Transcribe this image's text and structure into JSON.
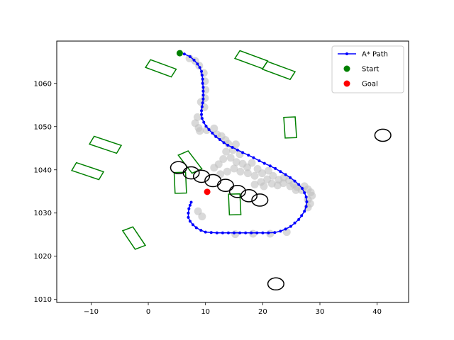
{
  "chart_data": {
    "type": "scatter",
    "xlim": [
      -16,
      45.5
    ],
    "ylim": [
      1009.3,
      1069.8
    ],
    "xticks": [
      -10,
      0,
      10,
      20,
      30,
      40
    ],
    "yticks": [
      1010,
      1020,
      1030,
      1040,
      1050,
      1060
    ],
    "grid": false,
    "legend": {
      "placement": "top-right",
      "entries": [
        {
          "label": "A* Path",
          "color": "#0000ff",
          "marker": "line-dot"
        },
        {
          "label": "Start",
          "color": "#008000",
          "marker": "dot"
        },
        {
          "label": "Goal",
          "color": "#ff0000",
          "marker": "dot"
        }
      ]
    },
    "start": {
      "x": 5.5,
      "y": 1067.0,
      "color": "#008000"
    },
    "goal": {
      "x": 10.3,
      "y": 1034.9,
      "color": "#ff0000"
    },
    "path_color": "#0000ff",
    "path": [
      [
        6.3,
        1066.8
      ],
      [
        7.3,
        1066.2
      ],
      [
        8.0,
        1065.4
      ],
      [
        8.6,
        1064.5
      ],
      [
        9.0,
        1063.7
      ],
      [
        9.3,
        1062.8
      ],
      [
        9.4,
        1061.9
      ],
      [
        9.5,
        1061.0
      ],
      [
        9.5,
        1060.0
      ],
      [
        9.6,
        1059.1
      ],
      [
        9.6,
        1058.2
      ],
      [
        9.6,
        1057.3
      ],
      [
        9.6,
        1056.4
      ],
      [
        9.5,
        1055.5
      ],
      [
        9.4,
        1054.6
      ],
      [
        9.3,
        1053.7
      ],
      [
        9.3,
        1052.8
      ],
      [
        9.4,
        1051.9
      ],
      [
        9.7,
        1051.0
      ],
      [
        10.1,
        1050.1
      ],
      [
        10.6,
        1049.3
      ],
      [
        11.2,
        1048.5
      ],
      [
        11.8,
        1047.7
      ],
      [
        12.5,
        1047.0
      ],
      [
        13.2,
        1046.3
      ],
      [
        13.9,
        1045.7
      ],
      [
        14.7,
        1045.2
      ],
      [
        15.6,
        1044.6
      ],
      [
        16.5,
        1044.0
      ],
      [
        17.5,
        1043.4
      ],
      [
        18.4,
        1042.8
      ],
      [
        19.4,
        1042.1
      ],
      [
        20.3,
        1041.5
      ],
      [
        21.3,
        1040.9
      ],
      [
        22.2,
        1040.3
      ],
      [
        23.1,
        1039.6
      ],
      [
        24.0,
        1038.9
      ],
      [
        24.8,
        1038.2
      ],
      [
        25.6,
        1037.4
      ],
      [
        26.3,
        1036.6
      ],
      [
        26.9,
        1035.7
      ],
      [
        27.3,
        1034.7
      ],
      [
        27.6,
        1033.7
      ],
      [
        27.7,
        1032.6
      ],
      [
        27.6,
        1031.5
      ],
      [
        27.3,
        1030.4
      ],
      [
        26.8,
        1029.4
      ],
      [
        26.3,
        1028.5
      ],
      [
        25.6,
        1027.7
      ],
      [
        24.9,
        1026.9
      ],
      [
        24.0,
        1026.3
      ],
      [
        23.1,
        1025.8
      ],
      [
        22.1,
        1025.5
      ],
      [
        21.0,
        1025.4
      ],
      [
        20.0,
        1025.4
      ],
      [
        19.0,
        1025.4
      ],
      [
        18.0,
        1025.4
      ],
      [
        17.0,
        1025.4
      ],
      [
        16.0,
        1025.4
      ],
      [
        15.0,
        1025.4
      ],
      [
        14.0,
        1025.4
      ],
      [
        13.0,
        1025.4
      ],
      [
        12.0,
        1025.4
      ],
      [
        11.0,
        1025.5
      ],
      [
        10.0,
        1025.6
      ],
      [
        9.2,
        1026.0
      ],
      [
        8.4,
        1026.6
      ],
      [
        7.8,
        1027.3
      ],
      [
        7.3,
        1028.1
      ],
      [
        7.0,
        1029.0
      ],
      [
        7.0,
        1030.0
      ],
      [
        7.1,
        1031.0
      ],
      [
        7.3,
        1031.8
      ],
      [
        7.5,
        1032.5
      ]
    ],
    "explored_color": "#c0c0c0",
    "explored": [
      [
        7.2,
        1065.8
      ],
      [
        8.2,
        1065.2
      ],
      [
        8.9,
        1064.1
      ],
      [
        9.7,
        1062.4
      ],
      [
        9.9,
        1060.5
      ],
      [
        10.0,
        1058.5
      ],
      [
        9.9,
        1056.6
      ],
      [
        9.8,
        1054.5
      ],
      [
        9.2,
        1055.7
      ],
      [
        8.6,
        1052.2
      ],
      [
        8.2,
        1050.8
      ],
      [
        8.8,
        1049.7
      ],
      [
        10.2,
        1049.2
      ],
      [
        9.0,
        1049.0
      ],
      [
        11.5,
        1049.6
      ],
      [
        12.0,
        1048.2
      ],
      [
        12.8,
        1047.8
      ],
      [
        13.5,
        1046.9
      ],
      [
        14.0,
        1046.0
      ],
      [
        14.8,
        1044.6
      ],
      [
        15.3,
        1045.9
      ],
      [
        16.0,
        1043.6
      ],
      [
        13.6,
        1044.2
      ],
      [
        13.1,
        1042.5
      ],
      [
        12.3,
        1041.3
      ],
      [
        11.5,
        1040.5
      ],
      [
        14.4,
        1042.8
      ],
      [
        15.4,
        1041.8
      ],
      [
        16.5,
        1041.4
      ],
      [
        17.3,
        1040.6
      ],
      [
        18.1,
        1041.6
      ],
      [
        19.1,
        1040.2
      ],
      [
        19.9,
        1039.2
      ],
      [
        18.6,
        1038.6
      ],
      [
        17.4,
        1039.2
      ],
      [
        16.1,
        1039.6
      ],
      [
        15.0,
        1040.3
      ],
      [
        13.8,
        1039.6
      ],
      [
        12.6,
        1039.0
      ],
      [
        21.0,
        1039.8
      ],
      [
        21.8,
        1038.6
      ],
      [
        20.8,
        1037.8
      ],
      [
        19.7,
        1037.2
      ],
      [
        18.6,
        1036.6
      ],
      [
        20.2,
        1036.2
      ],
      [
        21.6,
        1036.8
      ],
      [
        22.8,
        1037.7
      ],
      [
        23.7,
        1038.2
      ],
      [
        24.6,
        1037.6
      ],
      [
        25.4,
        1036.7
      ],
      [
        26.0,
        1036.0
      ],
      [
        26.8,
        1035.3
      ],
      [
        27.3,
        1036.2
      ],
      [
        27.9,
        1035.5
      ],
      [
        28.4,
        1034.8
      ],
      [
        28.6,
        1034.0
      ],
      [
        27.9,
        1033.1
      ],
      [
        28.3,
        1032.2
      ],
      [
        27.9,
        1031.3
      ],
      [
        23.6,
        1036.9
      ],
      [
        22.6,
        1036.4
      ],
      [
        24.8,
        1036.2
      ],
      [
        25.8,
        1035.3
      ],
      [
        9.4,
        1029.2
      ],
      [
        8.7,
        1030.4
      ],
      [
        15.2,
        1025.1
      ],
      [
        18.3,
        1025.2
      ],
      [
        21.3,
        1025.2
      ],
      [
        24.2,
        1025.6
      ]
    ],
    "rectangles_color": "#008000",
    "rectangles": [
      {
        "cx": 2.2,
        "cy": 1063.5,
        "w": 5.0,
        "h": 2.0,
        "angle": -26
      },
      {
        "cx": 18.0,
        "cy": 1065.5,
        "w": 5.4,
        "h": 2.0,
        "angle": -26
      },
      {
        "cx": 22.8,
        "cy": 1063.0,
        "w": 5.4,
        "h": 2.0,
        "angle": -26
      },
      {
        "cx": -7.5,
        "cy": 1045.8,
        "w": 5.2,
        "h": 2.0,
        "angle": -24
      },
      {
        "cx": -10.6,
        "cy": 1039.7,
        "w": 5.2,
        "h": 2.0,
        "angle": -24
      },
      {
        "cx": 24.8,
        "cy": 1049.8,
        "w": 2.0,
        "h": 4.8,
        "angle": 3
      },
      {
        "cx": 7.3,
        "cy": 1041.8,
        "w": 2.0,
        "h": 4.8,
        "angle": 30
      },
      {
        "cx": 5.6,
        "cy": 1037.0,
        "w": 2.0,
        "h": 4.8,
        "angle": 2
      },
      {
        "cx": 15.1,
        "cy": 1032.0,
        "w": 2.0,
        "h": 4.8,
        "angle": 2
      },
      {
        "cx": -2.5,
        "cy": 1024.2,
        "w": 2.0,
        "h": 4.8,
        "angle": 27
      }
    ],
    "ellipses_color": "#000000",
    "ellipses": [
      {
        "cx": 5.3,
        "cy": 1040.5,
        "rx": 1.4,
        "ry": 1.4
      },
      {
        "cx": 7.5,
        "cy": 1039.3,
        "rx": 1.4,
        "ry": 1.4
      },
      {
        "cx": 9.3,
        "cy": 1038.5,
        "rx": 1.4,
        "ry": 1.4
      },
      {
        "cx": 11.3,
        "cy": 1037.5,
        "rx": 1.4,
        "ry": 1.4
      },
      {
        "cx": 13.5,
        "cy": 1036.4,
        "rx": 1.4,
        "ry": 1.4
      },
      {
        "cx": 15.6,
        "cy": 1035.0,
        "rx": 1.4,
        "ry": 1.4
      },
      {
        "cx": 17.6,
        "cy": 1034.0,
        "rx": 1.4,
        "ry": 1.4
      },
      {
        "cx": 19.5,
        "cy": 1033.0,
        "rx": 1.4,
        "ry": 1.4
      },
      {
        "cx": 41.0,
        "cy": 1048.0,
        "rx": 1.4,
        "ry": 1.4
      },
      {
        "cx": 22.3,
        "cy": 1013.6,
        "rx": 1.4,
        "ry": 1.4
      }
    ]
  }
}
